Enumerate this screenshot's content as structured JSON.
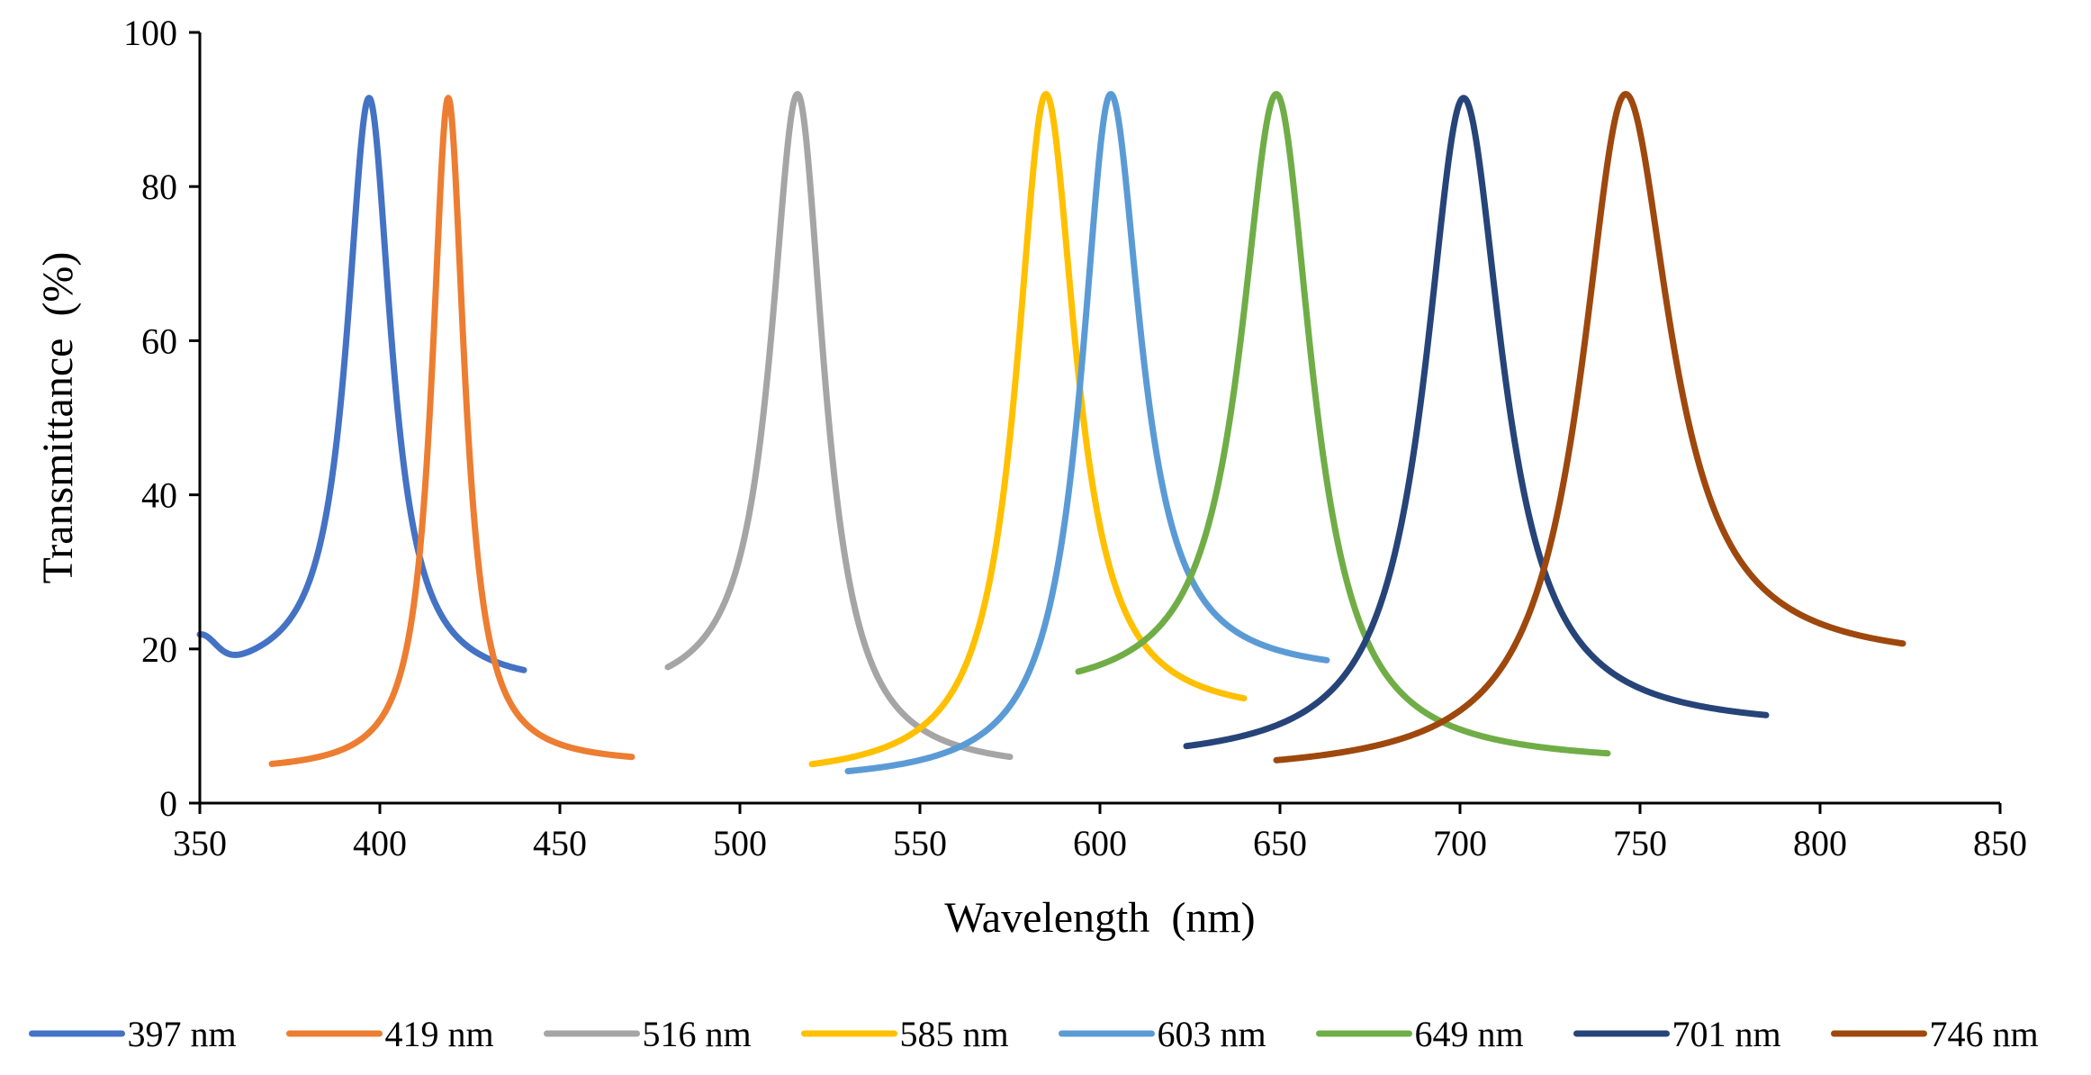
{
  "chart_data": {
    "type": "line",
    "title": "",
    "xlabel": "Wavelength  (nm)",
    "ylabel": "Transmittance  (%)",
    "xlim": [
      350,
      850
    ],
    "ylim": [
      0,
      100
    ],
    "x_ticks": [
      350,
      400,
      450,
      500,
      550,
      600,
      650,
      700,
      750,
      800,
      850
    ],
    "y_ticks": [
      0,
      20,
      40,
      60,
      80,
      100
    ],
    "grid": false,
    "legend_position": "bottom",
    "series": [
      {
        "name": "397 nm",
        "color": "#4472C4",
        "peak_nm": 397,
        "peak": 91.5,
        "gamma": 7.5,
        "x_start": 350,
        "x_end": 440,
        "base_left": 16,
        "base_right": 15,
        "left_edge": 20
      },
      {
        "name": "419 nm",
        "color": "#ED7D31",
        "peak_nm": 419,
        "peak": 91.5,
        "gamma": 5.5,
        "x_start": 370,
        "x_end": 470,
        "base_left": 4,
        "base_right": 5
      },
      {
        "name": "516 nm",
        "color": "#A5A5A5",
        "peak_nm": 516,
        "peak": 92.0,
        "gamma": 9.0,
        "x_start": 480,
        "x_end": 575,
        "base_left": 13,
        "base_right": 4
      },
      {
        "name": "585 nm",
        "color": "#FFC000",
        "peak_nm": 585,
        "peak": 92.0,
        "gamma": 10.0,
        "x_start": 520,
        "x_end": 640,
        "base_left": 3,
        "base_right": 11
      },
      {
        "name": "603 nm",
        "color": "#5B9BD5",
        "peak_nm": 603,
        "peak": 92.0,
        "gamma": 10.0,
        "x_start": 530,
        "x_end": 663,
        "base_left": 2.5,
        "base_right": 16.5
      },
      {
        "name": "649 nm",
        "color": "#70AD47",
        "peak_nm": 649,
        "peak": 92.0,
        "gamma": 12.0,
        "x_start": 594,
        "x_end": 741,
        "base_left": 13.5,
        "base_right": 5
      },
      {
        "name": "701 nm",
        "color": "#264478",
        "peak_nm": 701,
        "peak": 91.5,
        "gamma": 13.0,
        "x_start": 624,
        "x_end": 785,
        "base_left": 5,
        "base_right": 9.5
      },
      {
        "name": "746 nm",
        "color": "#9E480E",
        "peak_nm": 746,
        "peak": 92.0,
        "gamma": 15.0,
        "x_start": 649,
        "x_end": 823,
        "base_left": 3.5,
        "base_right": 18
      }
    ]
  }
}
